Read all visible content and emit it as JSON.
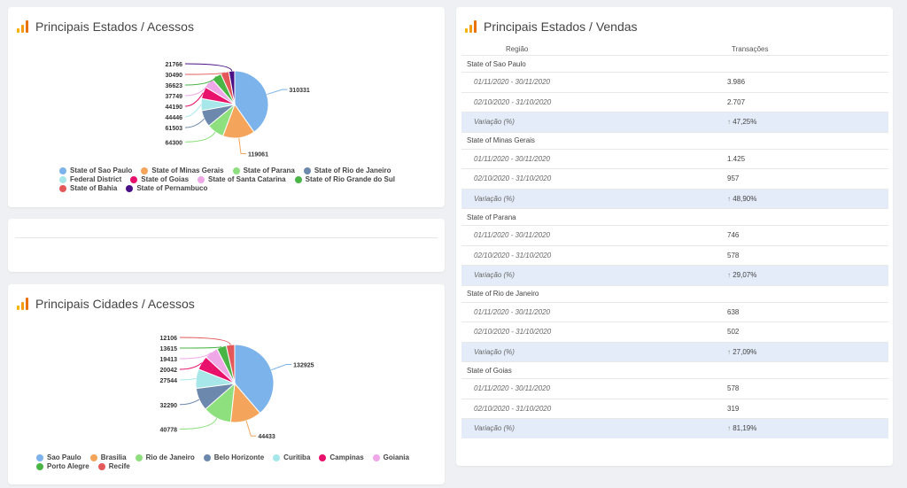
{
  "cards": {
    "estados_acessos": {
      "title": "Principais Estados / Acessos",
      "chart_data": {
        "type": "pie",
        "series": [
          {
            "name": "State of Sao Paulo",
            "value": 310331,
            "color": "#7cb3ea"
          },
          {
            "name": "State of Minas Gerais",
            "value": 119061,
            "color": "#f5a55b"
          },
          {
            "name": "State of Parana",
            "value": 64300,
            "color": "#8ee07e"
          },
          {
            "name": "State of Rio de Janeiro",
            "value": 61503,
            "color": "#6d88ad"
          },
          {
            "name": "Federal District",
            "value": 44446,
            "color": "#a7e7ea"
          },
          {
            "name": "State of Goias",
            "value": 44190,
            "color": "#e8116b"
          },
          {
            "name": "State of Santa Catarina",
            "value": 37749,
            "color": "#f0a7e8"
          },
          {
            "name": "State of Rio Grande do Sul",
            "value": 36623,
            "color": "#48b545"
          },
          {
            "name": "State of Bahia",
            "value": 30490,
            "color": "#e35959"
          },
          {
            "name": "State of Pernambuco",
            "value": 21766,
            "color": "#4b0f86"
          }
        ],
        "legend_placement": "bottom"
      }
    },
    "cidades_acessos": {
      "title": "Principais Cidades / Acessos",
      "chart_data": {
        "type": "pie",
        "series": [
          {
            "name": "Sao Paulo",
            "value": 132925,
            "color": "#7cb3ea"
          },
          {
            "name": "Brasilia",
            "value": 44433,
            "color": "#f5a55b"
          },
          {
            "name": "Rio de Janeiro",
            "value": 40778,
            "color": "#8ee07e"
          },
          {
            "name": "Belo Horizonte",
            "value": 32290,
            "color": "#6d88ad"
          },
          {
            "name": "Curitiba",
            "value": 27544,
            "color": "#a7e7ea"
          },
          {
            "name": "Campinas",
            "value": 20042,
            "color": "#e8116b"
          },
          {
            "name": "Goiania",
            "value": 19413,
            "color": "#f0a7e8"
          },
          {
            "name": "Porto Alegre",
            "value": 13615,
            "color": "#48b545"
          },
          {
            "name": "Recife",
            "value": 12106,
            "color": "#e35959"
          }
        ],
        "legend_placement": "bottom"
      }
    },
    "estados_vendas": {
      "title": "Principais Estados / Vendas",
      "columns": [
        "Região",
        "Transações"
      ],
      "groups": [
        {
          "name": "State of Sao Paulo",
          "rows": [
            {
              "period": "01/11/2020 - 30/11/2020",
              "value": "3.986"
            },
            {
              "period": "02/10/2020 - 31/10/2020",
              "value": "2.707"
            }
          ],
          "variation_label": "Variação (%)",
          "variation": "47,25%"
        },
        {
          "name": "State of Minas Gerais",
          "rows": [
            {
              "period": "01/11/2020 - 30/11/2020",
              "value": "1.425"
            },
            {
              "period": "02/10/2020 - 31/10/2020",
              "value": "957"
            }
          ],
          "variation_label": "Variação (%)",
          "variation": "48,90%"
        },
        {
          "name": "State of Parana",
          "rows": [
            {
              "period": "01/11/2020 - 30/11/2020",
              "value": "746"
            },
            {
              "period": "02/10/2020 - 31/10/2020",
              "value": "578"
            }
          ],
          "variation_label": "Variação (%)",
          "variation": "29,07%"
        },
        {
          "name": "State of Rio de Janeiro",
          "rows": [
            {
              "period": "01/11/2020 - 30/11/2020",
              "value": "638"
            },
            {
              "period": "02/10/2020 - 31/10/2020",
              "value": "502"
            }
          ],
          "variation_label": "Variação (%)",
          "variation": "27,09%"
        },
        {
          "name": "State of Goias",
          "rows": [
            {
              "period": "01/11/2020 - 30/11/2020",
              "value": "578"
            },
            {
              "period": "02/10/2020 - 31/10/2020",
              "value": "319"
            }
          ],
          "variation_label": "Variação (%)",
          "variation": "81,19%"
        }
      ]
    }
  }
}
